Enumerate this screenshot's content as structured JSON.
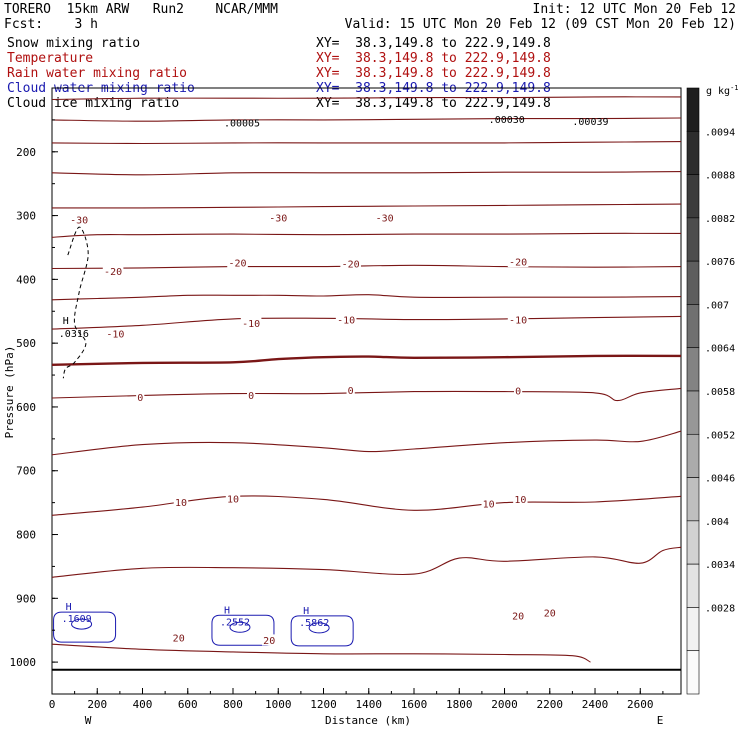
{
  "header": {
    "model": "TORERO  15km ARW   Run2    NCAR/MMM",
    "init": "Init: 12 UTC Mon 20 Feb 12",
    "fcst": "Fcst:    3 h",
    "valid": "Valid: 15 UTC Mon 20 Feb 12 (09 CST Mon 20 Feb 12)",
    "fields": [
      {
        "name": "Snow mixing ratio",
        "xy": "XY=  38.3,149.8 to 222.9,149.8",
        "color": "#000000"
      },
      {
        "name": "Temperature",
        "xy": "XY=  38.3,149.8 to 222.9,149.8",
        "color": "#b01010"
      },
      {
        "name": "Rain water mixing ratio",
        "xy": "XY=  38.3,149.8 to 222.9,149.8",
        "color": "#b01010"
      },
      {
        "name": "Cloud water mixing ratio",
        "xy": "XY=  38.3,149.8 to 222.9,149.8",
        "color": "#1a1ab0"
      },
      {
        "name": "Cloud ice mixing ratio",
        "xy": "XY=  38.3,149.8 to 222.9,149.8",
        "color": "#000000"
      }
    ]
  },
  "chart_data": {
    "type": "contour",
    "xlabel": "Distance (km)",
    "ylabel": "Pressure (hPa)",
    "xlim": [
      0,
      2780
    ],
    "ylim": [
      1050,
      100
    ],
    "xticks": [
      "0",
      "200",
      "400",
      "600",
      "800",
      "1000",
      "1200",
      "1400",
      "1600",
      "1800",
      "2000",
      "2200",
      "2400",
      "2600"
    ],
    "yticks": [
      "200",
      "300",
      "400",
      "500",
      "600",
      "700",
      "800",
      "900",
      "1000"
    ],
    "xtick_values": [
      0,
      200,
      400,
      600,
      800,
      1000,
      1200,
      1400,
      1600,
      1800,
      2000,
      2200,
      2400,
      2600
    ],
    "ytick_values": [
      200,
      300,
      400,
      500,
      600,
      700,
      800,
      900,
      1000
    ],
    "endpoints": {
      "left": "W",
      "right": "E"
    },
    "temperature_contours": [
      {
        "value": -45,
        "x": [
          0,
          400,
          800,
          1200,
          1600,
          2000,
          2400,
          2780
        ],
        "p": [
          118,
          116,
          116,
          116,
          115,
          115,
          114,
          114
        ]
      },
      {
        "value": -40,
        "x": [
          0,
          400,
          800,
          1200,
          1600,
          2000,
          2400,
          2780
        ],
        "p": [
          150,
          152,
          150,
          150,
          149,
          148,
          148,
          147
        ]
      },
      {
        "value": -35,
        "x": [
          0,
          400,
          800,
          1200,
          1600,
          2000,
          2400,
          2780
        ],
        "p": [
          186,
          187,
          186,
          186,
          186,
          186,
          185,
          184
        ]
      },
      {
        "value": -30,
        "x": [
          0,
          400,
          800,
          1200,
          1600,
          2000,
          2400,
          2780
        ],
        "p": [
          233,
          236,
          233,
          233,
          233,
          232,
          232,
          231
        ]
      },
      {
        "value": -25,
        "x": [
          0,
          400,
          800,
          1200,
          1600,
          2000,
          2400,
          2780
        ],
        "p": [
          288,
          288,
          287,
          286,
          285,
          284,
          283,
          282
        ]
      },
      {
        "value": -20,
        "x": [
          0,
          200,
          400,
          800,
          1200,
          1600,
          2000,
          2400,
          2780
        ],
        "p": [
          334,
          330,
          330,
          329,
          330,
          329,
          329,
          328,
          328
        ]
      },
      {
        "value": -15,
        "x": [
          0,
          400,
          800,
          1200,
          1600,
          2000,
          2400,
          2780
        ],
        "p": [
          383,
          382,
          380,
          380,
          378,
          380,
          381,
          380
        ]
      },
      {
        "value": -10,
        "x": [
          0,
          200,
          400,
          600,
          800,
          1000,
          1200,
          1400,
          1600,
          2000,
          2400,
          2780
        ],
        "p": [
          432,
          430,
          428,
          425,
          425,
          425,
          426,
          424,
          428,
          428,
          428,
          427
        ]
      },
      {
        "value": -5,
        "x": [
          0,
          400,
          800,
          1200,
          1600,
          2000,
          2400,
          2780
        ],
        "p": [
          478,
          472,
          462,
          461,
          463,
          462,
          460,
          458
        ]
      },
      {
        "value": 0,
        "x": [
          0,
          400,
          800,
          1000,
          1200,
          1400,
          1600,
          2000,
          2400,
          2780
        ],
        "p": [
          534,
          531,
          530,
          525,
          522,
          521,
          523,
          522,
          520,
          520
        ]
      },
      {
        "value": 5,
        "x": [
          0,
          400,
          800,
          1200,
          1600,
          2000,
          2400,
          2500,
          2600,
          2780
        ],
        "p": [
          586,
          582,
          579,
          579,
          576,
          576,
          578,
          590,
          578,
          571
        ]
      },
      {
        "value": 10,
        "x": [
          0,
          400,
          800,
          1200,
          1400,
          1600,
          2000,
          2400,
          2600,
          2780
        ],
        "p": [
          675,
          659,
          656,
          664,
          670,
          666,
          656,
          652,
          654,
          638
        ]
      },
      {
        "value": 15,
        "x": [
          0,
          400,
          800,
          1200,
          1600,
          2000,
          2400,
          2780
        ],
        "p": [
          770,
          757,
          740,
          745,
          762,
          750,
          749,
          740
        ]
      },
      {
        "value": 20,
        "x": [
          0,
          400,
          800,
          1200,
          1600,
          1800,
          2000,
          2400,
          2600,
          2700,
          2780
        ],
        "p": [
          867,
          853,
          852,
          855,
          862,
          837,
          842,
          835,
          845,
          825,
          820
        ]
      },
      {
        "value": 25,
        "x": [
          0,
          400,
          800,
          1200,
          1600,
          2000,
          2300,
          2380
        ],
        "p": [
          972,
          980,
          984,
          987,
          987,
          988,
          990,
          1000
        ]
      }
    ],
    "temperature_labels": [
      {
        "text": "-30",
        "x": 120,
        "p": 307
      },
      {
        "text": "-30",
        "x": 1000,
        "p": 304
      },
      {
        "text": "-30",
        "x": 1470,
        "p": 304
      },
      {
        "text": "-20",
        "x": 270,
        "p": 388
      },
      {
        "text": "-20",
        "x": 820,
        "p": 374
      },
      {
        "text": "-20",
        "x": 1320,
        "p": 376
      },
      {
        "text": "-20",
        "x": 2060,
        "p": 373
      },
      {
        "text": "-10",
        "x": 280,
        "p": 486
      },
      {
        "text": "-10",
        "x": 880,
        "p": 469
      },
      {
        "text": "-10",
        "x": 1300,
        "p": 464
      },
      {
        "text": "-10",
        "x": 2060,
        "p": 464
      },
      {
        "text": "0",
        "x": 390,
        "p": 585
      },
      {
        "text": "0",
        "x": 880,
        "p": 582
      },
      {
        "text": "0",
        "x": 1320,
        "p": 574
      },
      {
        "text": "0",
        "x": 2060,
        "p": 575
      },
      {
        "text": "10",
        "x": 570,
        "p": 750
      },
      {
        "text": "10",
        "x": 800,
        "p": 744
      },
      {
        "text": "10",
        "x": 1930,
        "p": 752
      },
      {
        "text": "10",
        "x": 2070,
        "p": 745
      },
      {
        "text": "20",
        "x": 560,
        "p": 962
      },
      {
        "text": "20",
        "x": 960,
        "p": 966
      },
      {
        "text": "20",
        "x": 2060,
        "p": 928
      },
      {
        "text": "20",
        "x": 2200,
        "p": 923
      }
    ],
    "ice_contour": {
      "x": [
        70,
        120,
        160,
        120,
        100,
        150,
        100,
        60,
        50
      ],
      "p": [
        362,
        318,
        360,
        420,
        470,
        500,
        530,
        540,
        555
      ]
    },
    "ice_maximum": {
      "marker": "H",
      "value": ".0316",
      "x": 30,
      "p": 495
    },
    "upper_labels": [
      {
        "text": ".00005",
        "x": 760,
        "p": 160
      },
      {
        "text": ".00030",
        "x": 1930,
        "p": 155
      },
      {
        "text": ".00039",
        "x": 2300,
        "p": 158
      }
    ],
    "cloud_water_maxima": [
      {
        "marker": "H",
        "value": ".1609",
        "x": 60,
        "p": 931
      },
      {
        "marker": "H",
        "value": ".2552",
        "x": 760,
        "p": 936
      },
      {
        "marker": "H",
        "value": ".5862",
        "x": 1110,
        "p": 937
      }
    ],
    "surface_line_p": 1012,
    "colorbar": {
      "unit": "g kg",
      "unit_superscript": "-1",
      "tick_labels": [
        ".0094",
        ".0088",
        ".0082",
        ".0076",
        ".007",
        ".0064",
        ".0058",
        ".0052",
        ".0046",
        ".004",
        ".0034",
        ".0028"
      ],
      "colors": [
        "#1e1e1e",
        "#2d2d2d",
        "#3c3c3c",
        "#4d4d4d",
        "#5e5e5e",
        "#707070",
        "#838383",
        "#979797",
        "#ababab",
        "#bfbfbf",
        "#d2d2d2",
        "#e3e3e3",
        "#f1f1f1",
        "#fbfbfb"
      ]
    },
    "colors": {
      "temperature": "#7a1616",
      "cloud_water": "#1a1ab0",
      "ice": "#000000",
      "frame": "#000000"
    }
  }
}
